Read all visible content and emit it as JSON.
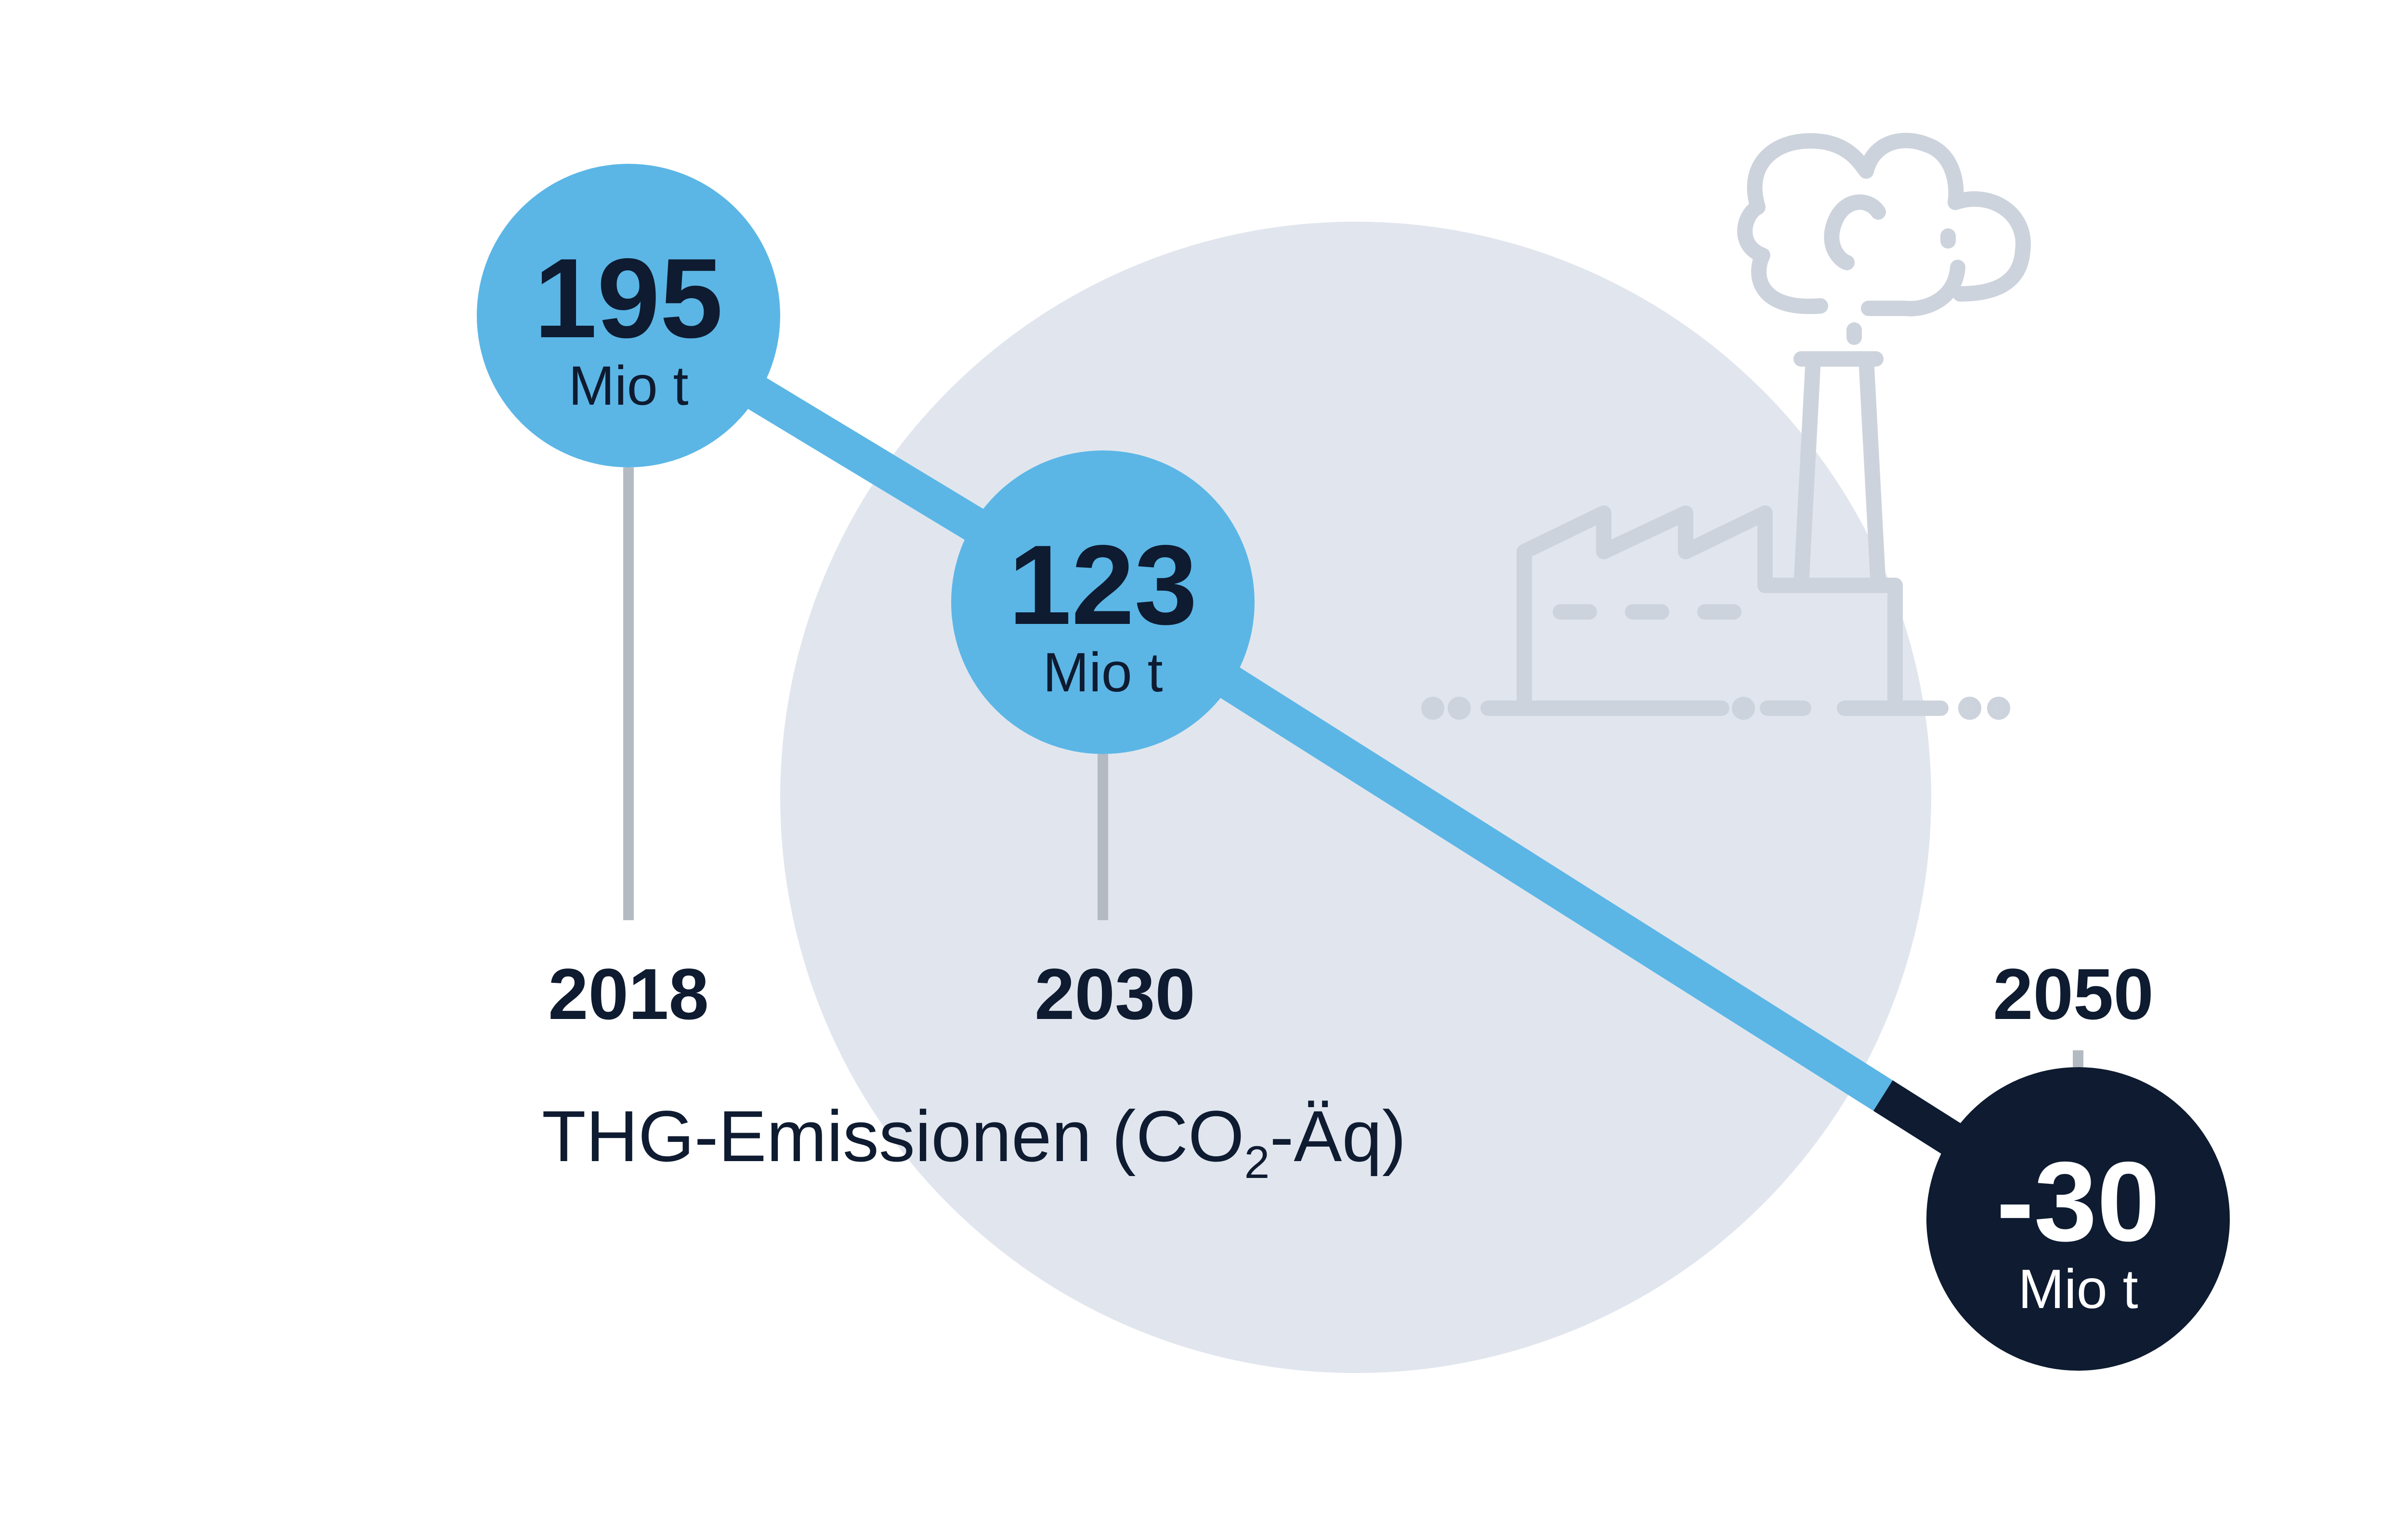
{
  "chart_data": {
    "type": "line",
    "ylabel": "THG-Emissionen (CO",
    "ylabel_sub": "2",
    "ylabel_suffix": "-Äq)",
    "unit": "Mio t",
    "points": [
      {
        "year": "2018",
        "value": 195,
        "label": "195"
      },
      {
        "year": "2030",
        "value": 123,
        "label": "123"
      },
      {
        "year": "2050",
        "value": -30,
        "label": "-30"
      }
    ]
  },
  "colors": {
    "accent": "#5bb6e6",
    "dark": "#0e1b30",
    "background_circle": "#e1e6ee",
    "stem": "#b4bac2",
    "factory": "#cdd3dc"
  },
  "icons": {
    "factory": "factory-icon"
  }
}
